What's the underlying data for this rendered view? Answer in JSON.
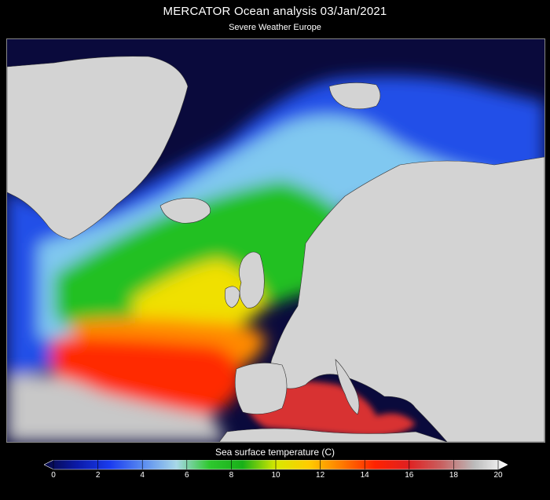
{
  "header": {
    "title": "MERCATOR Ocean analysis  03/Jan/2021",
    "subtitle": "Severe Weather Europe"
  },
  "legend": {
    "label": "Sea surface temperature (C)",
    "ticks": [
      "0",
      "2",
      "4",
      "6",
      "8",
      "10",
      "12",
      "14",
      "16",
      "18",
      "20"
    ],
    "range": [
      0,
      20
    ],
    "colors": [
      "#060840",
      "#0a1aa8",
      "#1a3cf0",
      "#5a8cf0",
      "#a8d8e8",
      "#2ec82e",
      "#18b018",
      "#d8e800",
      "#ffcc00",
      "#ff7a00",
      "#ff2200",
      "#e02020",
      "#c86060",
      "#bbbbbb",
      "#ffffff"
    ]
  },
  "map": {
    "land_color": "#d3d3d3",
    "ocean_color": "#0a0a3c"
  }
}
